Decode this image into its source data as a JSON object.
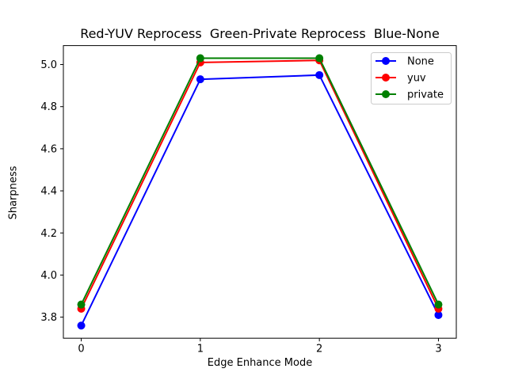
{
  "figure": {
    "background": "#ffffff",
    "plot_border_color": "#000000"
  },
  "chart_data": {
    "type": "line",
    "title": "Red-YUV Reprocess  Green-Private Reprocess  Blue-None",
    "xlabel": "Edge Enhance Mode",
    "ylabel": "Sharpness",
    "x": [
      0,
      1,
      2,
      3
    ],
    "series": [
      {
        "name": "None",
        "color": "#0000ff",
        "marker": "circle",
        "values": [
          3.76,
          4.93,
          4.95,
          3.81
        ]
      },
      {
        "name": "yuv",
        "color": "#ff0000",
        "marker": "circle",
        "values": [
          3.84,
          5.01,
          5.02,
          3.84
        ]
      },
      {
        "name": "private",
        "color": "#008000",
        "marker": "circle",
        "values": [
          3.86,
          5.03,
          5.03,
          3.86
        ]
      }
    ],
    "xticks": [
      "0",
      "1",
      "2",
      "3"
    ],
    "xtick_values": [
      0,
      1,
      2,
      3
    ],
    "yticks": [
      "3.8",
      "4.0",
      "4.2",
      "4.4",
      "4.6",
      "4.8",
      "5.0"
    ],
    "ytick_values": [
      3.8,
      4.0,
      4.2,
      4.4,
      4.6,
      4.8,
      5.0
    ],
    "xlim": [
      -0.15,
      3.15
    ],
    "ylim": [
      3.7,
      5.09
    ],
    "grid": false,
    "legend": {
      "position": "upper right",
      "border_color": "#cccccc",
      "background": "#ffffff",
      "entries": [
        "None",
        "yuv",
        "private"
      ]
    }
  }
}
